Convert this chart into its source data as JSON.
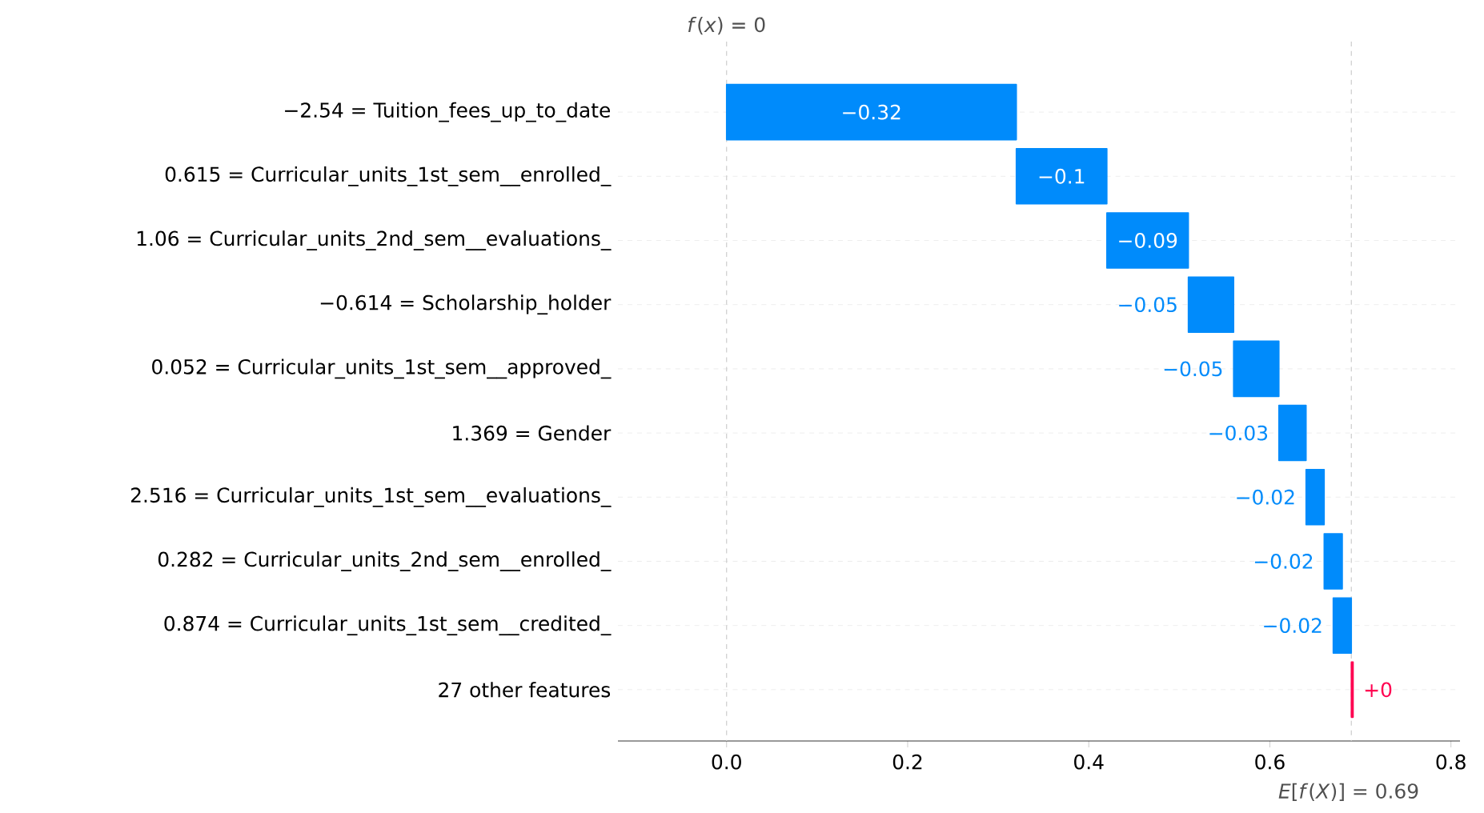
{
  "chart_data": {
    "type": "bar",
    "orientation": "horizontal",
    "categories": [
      "−2.54 = Tuition_fees_up_to_date",
      "0.615 = Curricular_units_1st_sem__enrolled_",
      "1.06 = Curricular_units_2nd_sem__evaluations_",
      "−0.614 = Scholarship_holder",
      "0.052 = Curricular_units_1st_sem__approved_",
      "1.369 = Gender",
      "2.516 = Curricular_units_1st_sem__evaluations_",
      "0.282 = Curricular_units_2nd_sem__enrolled_",
      "0.874 = Curricular_units_1st_sem__credited_",
      "27 other features"
    ],
    "values": [
      -0.32,
      -0.1,
      -0.09,
      -0.05,
      -0.05,
      -0.03,
      -0.02,
      -0.02,
      -0.02,
      0.002
    ],
    "base": [
      0.32,
      0.42,
      0.51,
      0.56,
      0.61,
      0.64,
      0.66,
      0.68,
      0.69,
      0.69
    ],
    "colors": [
      "#008bfb",
      "#008bfb",
      "#008bfb",
      "#008bfb",
      "#008bfb",
      "#008bfb",
      "#008bfb",
      "#008bfb",
      "#008bfb",
      "#ff0051"
    ],
    "value_labels": [
      "−0.32",
      "−0.1",
      "−0.09",
      "−0.05",
      "−0.05",
      "−0.03",
      "−0.02",
      "−0.02",
      "−0.02",
      "+0"
    ],
    "xlim": [
      -0.12,
      0.81
    ],
    "xticks": [
      {
        "value": 0,
        "label": "0.0"
      },
      0.2,
      0.4,
      0.6,
      0.8
    ],
    "grid": "y",
    "ref_lines": [
      {
        "axis": "x",
        "value": 0,
        "label": "*f*(*x*) = 0",
        "color": "#cccccc",
        "line_style": "dashed"
      },
      {
        "axis": "x",
        "value": 0.69,
        "label": "*E*[*f*(*X*)] = 0.69",
        "color": "#cccccc",
        "line_style": "dashed"
      }
    ]
  }
}
